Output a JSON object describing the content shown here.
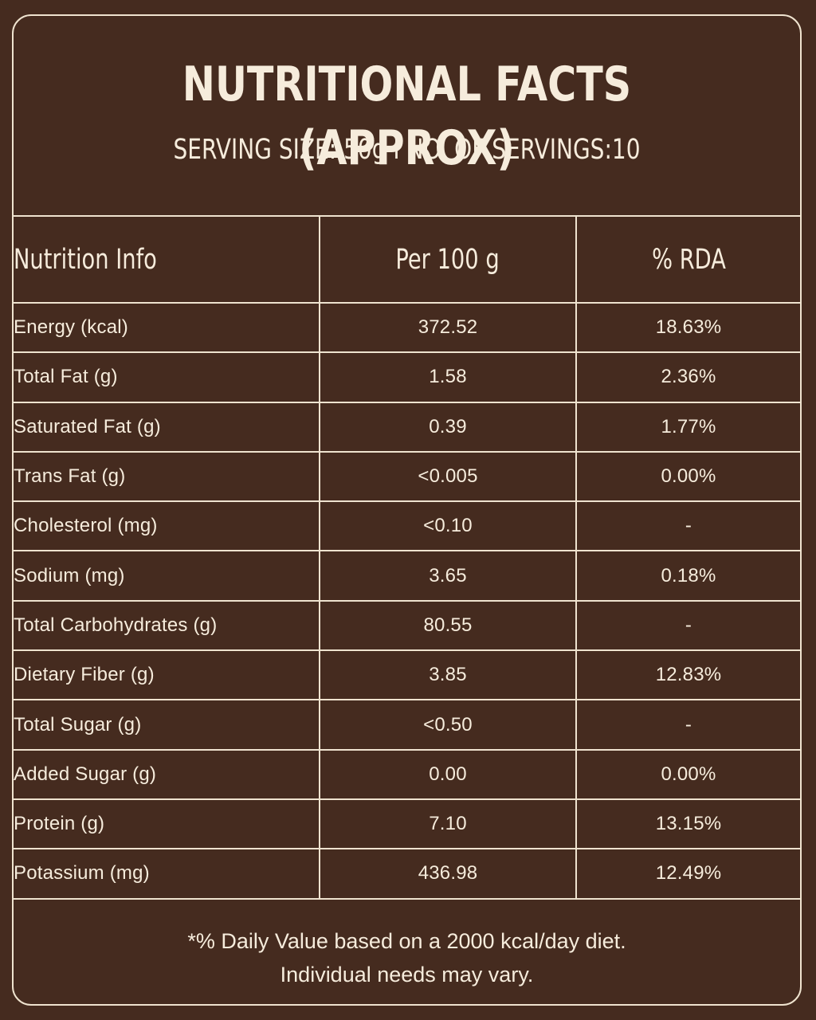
{
  "header": {
    "title": "NUTRITIONAL FACTS (APPROX)",
    "subtitle": "SERVING SIZE: 50g I NO. OF SERVINGS:10"
  },
  "table": {
    "columns": [
      "Nutrition Info",
      "Per 100 g",
      "% RDA"
    ],
    "rows": [
      {
        "name": "Energy (kcal)",
        "per100g": "372.52",
        "rda": "18.63%"
      },
      {
        "name": "Total Fat (g)",
        "per100g": "1.58",
        "rda": "2.36%"
      },
      {
        "name": "Saturated Fat (g)",
        "per100g": "0.39",
        "rda": "1.77%"
      },
      {
        "name": "Trans Fat (g)",
        "per100g": "<0.005",
        "rda": "0.00%"
      },
      {
        "name": "Cholesterol (mg)",
        "per100g": "<0.10",
        "rda": "-"
      },
      {
        "name": "Sodium (mg)",
        "per100g": "3.65",
        "rda": "0.18%"
      },
      {
        "name": "Total Carbohydrates (g)",
        "per100g": "80.55",
        "rda": "-"
      },
      {
        "name": "Dietary Fiber (g)",
        "per100g": "3.85",
        "rda": "12.83%"
      },
      {
        "name": "Total Sugar (g)",
        "per100g": "<0.50",
        "rda": "-"
      },
      {
        "name": "Added Sugar (g)",
        "per100g": "0.00",
        "rda": "0.00%"
      },
      {
        "name": "Protein (g)",
        "per100g": "7.10",
        "rda": "13.15%"
      },
      {
        "name": "Potassium (mg)",
        "per100g": "436.98",
        "rda": "12.49%"
      }
    ]
  },
  "footer": {
    "line1": "*% Daily Value based on a 2000 kcal/day diet.",
    "line2": "Individual needs may vary."
  },
  "colors": {
    "background": "#452b1f",
    "text": "#f6ecdc",
    "rules": "#efe3cf"
  }
}
